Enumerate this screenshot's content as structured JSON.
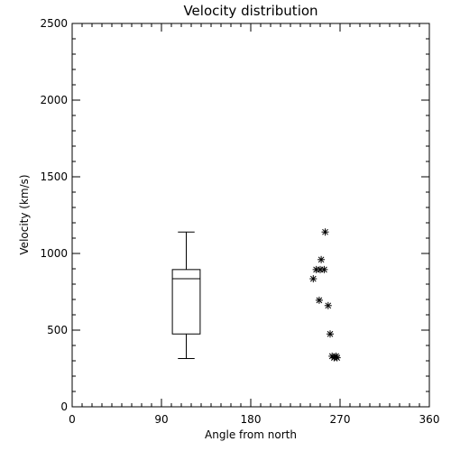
{
  "chart_data": {
    "type": "scatter",
    "title": "Velocity distribution",
    "xlabel": "Angle from north",
    "ylabel": "Velocity (km/s)",
    "xlim": [
      0,
      360
    ],
    "ylim": [
      0,
      2500
    ],
    "xticks": [
      "0",
      "90",
      "180",
      "270",
      "360"
    ],
    "yticks": [
      "0",
      "500",
      "1000",
      "1500",
      "2000",
      "2500"
    ],
    "grid": false,
    "boxplot": {
      "x_range": [
        101,
        129
      ],
      "whisker_low": 315,
      "q1": 475,
      "median": 835,
      "q3": 895,
      "whisker_high": 1140
    },
    "points": [
      {
        "x": 243,
        "y": 835
      },
      {
        "x": 246,
        "y": 895
      },
      {
        "x": 249,
        "y": 695
      },
      {
        "x": 250,
        "y": 895
      },
      {
        "x": 251,
        "y": 960
      },
      {
        "x": 254,
        "y": 895
      },
      {
        "x": 255,
        "y": 1140
      },
      {
        "x": 258,
        "y": 660
      },
      {
        "x": 260,
        "y": 475
      },
      {
        "x": 262,
        "y": 330
      },
      {
        "x": 264,
        "y": 320
      },
      {
        "x": 266,
        "y": 330
      },
      {
        "x": 267,
        "y": 320
      }
    ]
  }
}
